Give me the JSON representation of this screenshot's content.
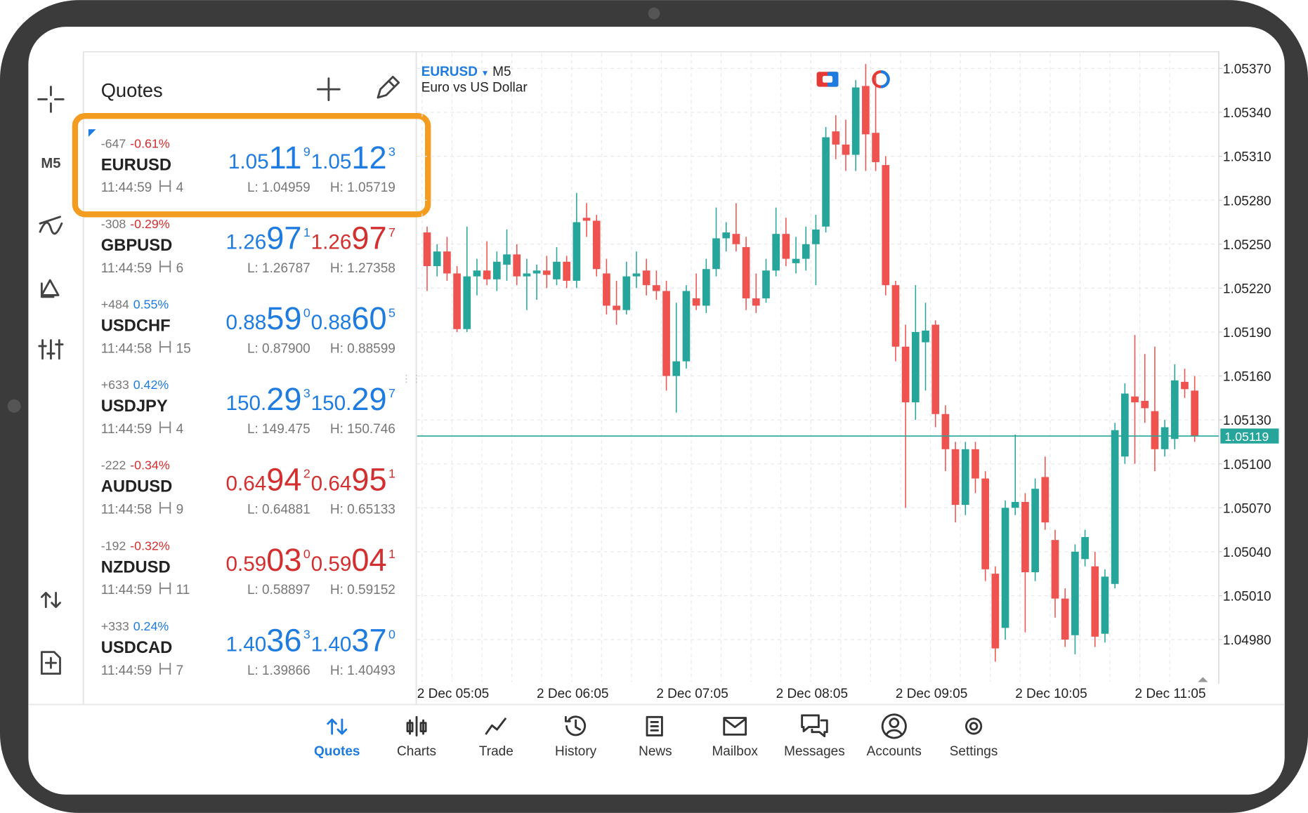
{
  "quotes_panel": {
    "title": "Quotes",
    "rows": [
      {
        "change": "-647",
        "percent": "-0.61%",
        "change_color": "#d32f2f",
        "symbol": "EURUSD",
        "time": "11:44:59",
        "spread": "4",
        "bid": [
          "1.05",
          "11",
          "9"
        ],
        "ask": [
          "1.05",
          "12",
          "3"
        ],
        "bid_color": "#1e7be0",
        "ask_color": "#1e7be0",
        "low": "L: 1.04959",
        "high": "H: 1.05719"
      },
      {
        "change": "-308",
        "percent": "-0.29%",
        "change_color": "#d32f2f",
        "symbol": "GBPUSD",
        "time": "11:44:59",
        "spread": "6",
        "bid": [
          "1.26",
          "97",
          "1"
        ],
        "ask": [
          "1.26",
          "97",
          "7"
        ],
        "bid_color": "#1e7be0",
        "ask_color": "#d32f2f",
        "low": "L: 1.26787",
        "high": "H: 1.27358"
      },
      {
        "change": "+484",
        "percent": "0.55%",
        "change_color": "#1e7be0",
        "symbol": "USDCHF",
        "time": "11:44:58",
        "spread": "15",
        "bid": [
          "0.88",
          "59",
          "0"
        ],
        "ask": [
          "0.88",
          "60",
          "5"
        ],
        "bid_color": "#1e7be0",
        "ask_color": "#1e7be0",
        "low": "L: 0.87900",
        "high": "H: 0.88599"
      },
      {
        "change": "+633",
        "percent": "0.42%",
        "change_color": "#1e7be0",
        "symbol": "USDJPY",
        "time": "11:44:59",
        "spread": "4",
        "bid": [
          "150.",
          "29",
          "3"
        ],
        "ask": [
          "150.",
          "29",
          "7"
        ],
        "bid_color": "#1e7be0",
        "ask_color": "#1e7be0",
        "low": "L: 149.475",
        "high": "H: 150.746"
      },
      {
        "change": "-222",
        "percent": "-0.34%",
        "change_color": "#d32f2f",
        "symbol": "AUDUSD",
        "time": "11:44:58",
        "spread": "9",
        "bid": [
          "0.64",
          "94",
          "2"
        ],
        "ask": [
          "0.64",
          "95",
          "1"
        ],
        "bid_color": "#d32f2f",
        "ask_color": "#d32f2f",
        "low": "L: 0.64881",
        "high": "H: 0.65133"
      },
      {
        "change": "-192",
        "percent": "-0.32%",
        "change_color": "#d32f2f",
        "symbol": "NZDUSD",
        "time": "11:44:59",
        "spread": "11",
        "bid": [
          "0.59",
          "03",
          "0"
        ],
        "ask": [
          "0.59",
          "04",
          "1"
        ],
        "bid_color": "#d32f2f",
        "ask_color": "#d32f2f",
        "low": "L: 0.58897",
        "high": "H: 0.59152"
      },
      {
        "change": "+333",
        "percent": "0.24%",
        "change_color": "#1e7be0",
        "symbol": "USDCAD",
        "time": "11:44:59",
        "spread": "7",
        "bid": [
          "1.40",
          "36",
          "3"
        ],
        "ask": [
          "1.40",
          "37",
          "0"
        ],
        "bid_color": "#1e7be0",
        "ask_color": "#1e7be0",
        "low": "L: 1.39866",
        "high": "H: 1.40493"
      }
    ]
  },
  "side_rail": {
    "timeframe": "M5"
  },
  "chart_data": {
    "type": "candlestick",
    "symbol": "EURUSD",
    "timeframe": "M5",
    "subtitle": "Euro vs US Dollar",
    "up_color": "#26a69a",
    "down_color": "#ef5350",
    "categories": [
      "2 Dec 05:05",
      null,
      null,
      null,
      null,
      null,
      null,
      null,
      null,
      null,
      null,
      null,
      "2 Dec 06:05",
      null,
      null,
      null,
      null,
      null,
      null,
      null,
      null,
      null,
      null,
      null,
      "2 Dec 07:05",
      null,
      null,
      null,
      null,
      null,
      null,
      null,
      null,
      null,
      null,
      null,
      "2 Dec 08:05",
      null,
      null,
      null,
      null,
      null,
      null,
      null,
      null,
      null,
      null,
      null,
      "2 Dec 09:05",
      null,
      null,
      null,
      null,
      null,
      null,
      null,
      null,
      null,
      null,
      null,
      "2 Dec 10:05",
      null,
      null,
      null,
      null,
      null,
      null,
      null,
      null,
      null,
      null,
      null,
      "2 Dec 11:05",
      null,
      null,
      null,
      null,
      null
    ],
    "ohlc": [
      [
        1.05258,
        1.05262,
        1.05218,
        1.05235
      ],
      [
        1.05235,
        1.0525,
        1.05228,
        1.05245
      ],
      [
        1.05245,
        1.05255,
        1.05225,
        1.0523
      ],
      [
        1.0523,
        1.05235,
        1.0519,
        1.05192
      ],
      [
        1.05192,
        1.05262,
        1.0519,
        1.05228
      ],
      [
        1.05228,
        1.0524,
        1.05215,
        1.05232
      ],
      [
        1.05232,
        1.05252,
        1.05222,
        1.05226
      ],
      [
        1.05226,
        1.05245,
        1.05218,
        1.05238
      ],
      [
        1.05236,
        1.0526,
        1.05225,
        1.05243
      ],
      [
        1.05243,
        1.0525,
        1.05222,
        1.05228
      ],
      [
        1.05228,
        1.0524,
        1.05205,
        1.0523
      ],
      [
        1.0523,
        1.05236,
        1.05212,
        1.05232
      ],
      [
        1.05232,
        1.05242,
        1.0522,
        1.05229
      ],
      [
        1.05226,
        1.05248,
        1.05222,
        1.05238
      ],
      [
        1.05238,
        1.05242,
        1.0522,
        1.05225
      ],
      [
        1.05225,
        1.05285,
        1.0522,
        1.05265
      ],
      [
        1.05268,
        1.05278,
        1.05255,
        1.05266
      ],
      [
        1.05266,
        1.0527,
        1.05228,
        1.05233
      ],
      [
        1.0523,
        1.0524,
        1.05202,
        1.05208
      ],
      [
        1.05208,
        1.05225,
        1.05195,
        1.05205
      ],
      [
        1.05205,
        1.05238,
        1.05202,
        1.05228
      ],
      [
        1.05228,
        1.05245,
        1.0522,
        1.0523
      ],
      [
        1.05232,
        1.0524,
        1.05215,
        1.05222
      ],
      [
        1.05222,
        1.05232,
        1.05212,
        1.05218
      ],
      [
        1.05218,
        1.05225,
        1.0515,
        1.0516
      ],
      [
        1.0516,
        1.0521,
        1.05135,
        1.0517
      ],
      [
        1.0517,
        1.05222,
        1.05165,
        1.05218
      ],
      [
        1.05213,
        1.0523,
        1.05205,
        1.05208
      ],
      [
        1.05208,
        1.0524,
        1.05203,
        1.05233
      ],
      [
        1.05233,
        1.05275,
        1.05228,
        1.05254
      ],
      [
        1.05254,
        1.05265,
        1.05245,
        1.05258
      ],
      [
        1.05257,
        1.05278,
        1.05245,
        1.0525
      ],
      [
        1.05248,
        1.05255,
        1.05205,
        1.05213
      ],
      [
        1.05213,
        1.0523,
        1.05203,
        1.05208
      ],
      [
        1.05213,
        1.0524,
        1.0521,
        1.05232
      ],
      [
        1.05232,
        1.05275,
        1.05228,
        1.05257
      ],
      [
        1.05257,
        1.05268,
        1.05235,
        1.0524
      ],
      [
        1.05237,
        1.05255,
        1.0523,
        1.0524
      ],
      [
        1.0524,
        1.05262,
        1.05232,
        1.0525
      ],
      [
        1.0525,
        1.0527,
        1.05222,
        1.0526
      ],
      [
        1.05262,
        1.0533,
        1.05258,
        1.05323
      ],
      [
        1.05327,
        1.05338,
        1.05308,
        1.05318
      ],
      [
        1.05318,
        1.05335,
        1.053,
        1.05311
      ],
      [
        1.05311,
        1.05362,
        1.053,
        1.05357
      ],
      [
        1.05358,
        1.05373,
        1.053,
        1.05325
      ],
      [
        1.05326,
        1.05365,
        1.053,
        1.05306
      ],
      [
        1.05304,
        1.0531,
        1.05215,
        1.05222
      ],
      [
        1.05222,
        1.05225,
        1.0517,
        1.0518
      ],
      [
        1.0518,
        1.05195,
        1.0507,
        1.05142
      ],
      [
        1.05142,
        1.05222,
        1.0513,
        1.0519
      ],
      [
        1.05183,
        1.0521,
        1.0515,
        1.05191
      ],
      [
        1.05195,
        1.05198,
        1.05125,
        1.05134
      ],
      [
        1.05134,
        1.0514,
        1.05095,
        1.0511
      ],
      [
        1.0511,
        1.05115,
        1.0506,
        1.05072
      ],
      [
        1.05072,
        1.05115,
        1.05065,
        1.0511
      ],
      [
        1.0511,
        1.05115,
        1.0508,
        1.0509
      ],
      [
        1.0509,
        1.05095,
        1.0502,
        1.05028
      ],
      [
        1.05025,
        1.0503,
        1.04965,
        1.04974
      ],
      [
        1.04988,
        1.05075,
        1.0498,
        1.0507
      ],
      [
        1.0507,
        1.0512,
        1.05065,
        1.05074
      ],
      [
        1.05074,
        1.0508,
        1.04985,
        1.05026
      ],
      [
        1.05026,
        1.0509,
        1.0502,
        1.05083
      ],
      [
        1.05091,
        1.05105,
        1.05055,
        1.0506
      ],
      [
        1.05048,
        1.05055,
        1.04995,
        1.05008
      ],
      [
        1.05008,
        1.05015,
        1.04975,
        1.0498
      ],
      [
        1.04983,
        1.05045,
        1.0497,
        1.0504
      ],
      [
        1.05035,
        1.05055,
        1.0503,
        1.0505
      ],
      [
        1.0503,
        1.0504,
        1.04975,
        1.04982
      ],
      [
        1.04984,
        1.05028,
        1.04978,
        1.05023
      ],
      [
        1.05018,
        1.05128,
        1.05015,
        1.05123
      ],
      [
        1.05105,
        1.05155,
        1.051,
        1.05148
      ],
      [
        1.05146,
        1.05188,
        1.051,
        1.05142
      ],
      [
        1.05143,
        1.05175,
        1.05128,
        1.05138
      ],
      [
        1.05136,
        1.0518,
        1.05095,
        1.0511
      ],
      [
        1.0511,
        1.0513,
        1.05105,
        1.05125
      ],
      [
        1.05117,
        1.05168,
        1.0511,
        1.05157
      ],
      [
        1.05156,
        1.05165,
        1.05145,
        1.05151
      ],
      [
        1.0515,
        1.0516,
        1.05115,
        1.05119
      ]
    ],
    "last": 1.05119,
    "last_color": "#26a69a",
    "ylim": [
      1.0495,
      1.0538
    ],
    "yticks": [
      {
        "value": 1.0537,
        "label": "1.05370"
      },
      {
        "value": 1.0534,
        "label": "1.05340"
      },
      {
        "value": 1.0531,
        "label": "1.05310"
      },
      {
        "value": 1.0528,
        "label": "1.05280"
      },
      {
        "value": 1.0525,
        "label": "1.05250"
      },
      {
        "value": 1.0522,
        "label": "1.05220"
      },
      {
        "value": 1.0519,
        "label": "1.05190"
      },
      {
        "value": 1.0516,
        "label": "1.05160"
      },
      {
        "value": 1.0513,
        "label": "1.05130"
      },
      {
        "value": 1.051,
        "label": "1.05100"
      },
      {
        "value": 1.0507,
        "label": "1.05070"
      },
      {
        "value": 1.0504,
        "label": "1.05040"
      },
      {
        "value": 1.0501,
        "label": "1.05010"
      },
      {
        "value": 1.0498,
        "label": "1.04980"
      }
    ],
    "grid": true
  },
  "bottom_nav": {
    "items": [
      "Quotes",
      "Charts",
      "Trade",
      "History",
      "News",
      "Mailbox",
      "Messages",
      "Accounts",
      "Settings"
    ],
    "active": "Quotes"
  }
}
